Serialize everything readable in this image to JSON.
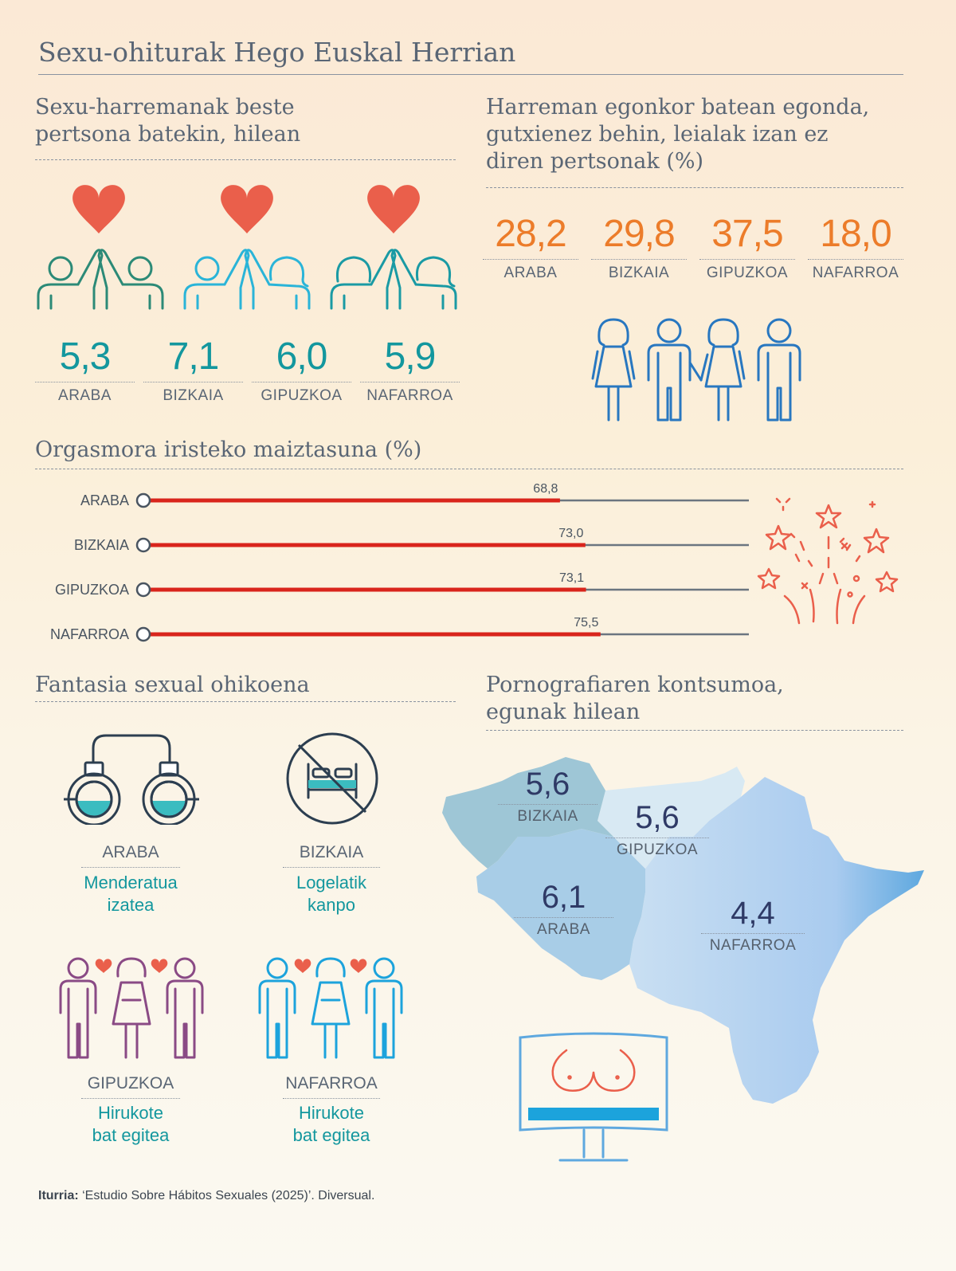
{
  "title": "Sexu-ohiturak Hego Euskal Herrian",
  "sections": {
    "relations_title_1": "Sexu-harremanak beste",
    "relations_title_2": "pertsona batekin, hilean",
    "infidelity_title_1": "Harreman egonkor batean egonda,",
    "infidelity_title_2": "gutxienez behin, leialak izan ez",
    "infidelity_title_3": "diren pertsonak (%)",
    "orgasm_title": "Orgasmora iristeko maiztasuna (%)",
    "fantasy_title": "Fantasia sexual ohikoena",
    "porn_title_1": "Pornografiaren kontsumoa,",
    "porn_title_2": "egunak hilean"
  },
  "relations": [
    {
      "region": "ARABA",
      "value": "5,3"
    },
    {
      "region": "BIZKAIA",
      "value": "7,1"
    },
    {
      "region": "GIPUZKOA",
      "value": "6,0"
    },
    {
      "region": "NAFARROA",
      "value": "5,9"
    }
  ],
  "infidelity": [
    {
      "region": "ARABA",
      "value": "28,2"
    },
    {
      "region": "BIZKAIA",
      "value": "29,8"
    },
    {
      "region": "GIPUZKOA",
      "value": "37,5"
    },
    {
      "region": "NAFARROA",
      "value": "18,0"
    }
  ],
  "fantasy": [
    {
      "region": "ARABA",
      "text1": "Menderatua",
      "text2": "izatea"
    },
    {
      "region": "BIZKAIA",
      "text1": "Logelatik",
      "text2": "kanpo"
    },
    {
      "region": "GIPUZKOA",
      "text1": "Hirukote",
      "text2": "bat egitea"
    },
    {
      "region": "NAFARROA",
      "text1": "Hirukote",
      "text2": "bat egitea"
    }
  ],
  "porn": [
    {
      "region": "BIZKAIA",
      "value": "5,6"
    },
    {
      "region": "GIPUZKOA",
      "value": "5,6"
    },
    {
      "region": "ARABA",
      "value": "6,1"
    },
    {
      "region": "NAFARROA",
      "value": "4,4"
    }
  ],
  "colors": {
    "teal": "#13979e",
    "orange": "#ec7c2a",
    "red": "#d9251c",
    "heart": "#ea5f4b",
    "blue": "#2877c0",
    "purple": "#8a4a85",
    "lightblue": "#1ca3dc"
  },
  "chart_data": {
    "type": "bar",
    "title": "Orgasmora iristeko maiztasuna (%)",
    "categories": [
      "ARABA",
      "BIZKAIA",
      "GIPUZKOA",
      "NAFARROA"
    ],
    "values": [
      68.8,
      73.0,
      73.1,
      75.5
    ],
    "value_labels": [
      "68,8",
      "73,0",
      "73,1",
      "75,5"
    ],
    "xlim": [
      0,
      100
    ]
  },
  "source": {
    "label": "Iturria:",
    "text": " ‘Estudio Sobre Hábitos Sexuales (2025)’. Diversual."
  }
}
